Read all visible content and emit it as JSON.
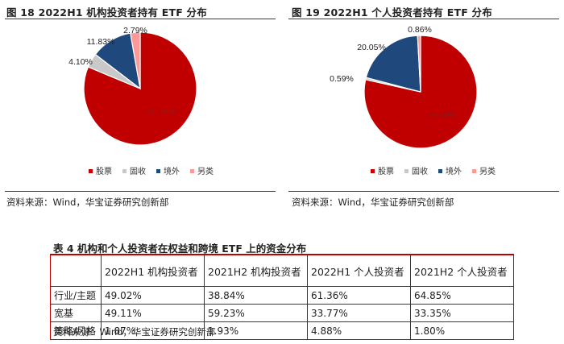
{
  "charts": [
    {
      "title": "图 18  2022H1 机构投资者持有 ETF 分布",
      "source": "资料来源：Wind，华宝证券研究创新部",
      "chart_data": {
        "type": "pie",
        "title": "图 18  2022H1 机构投资者持有 ETF 分布",
        "categories": [
          "股票",
          "固收",
          "境外",
          "另类"
        ],
        "values": [
          81.28,
          4.1,
          11.83,
          2.79
        ],
        "labels": [
          "81.28%",
          "4.10%",
          "11.83%",
          "2.79%"
        ],
        "colors": [
          "#c00000",
          "#c9c9c9",
          "#1f497d",
          "#ff9999"
        ],
        "legend": "bottom"
      }
    },
    {
      "title": "图 19  2022H1 个人投资者持有 ETF 分布",
      "source": "资料来源：Wind，华宝证券研究创新部",
      "chart_data": {
        "type": "pie",
        "title": "图 19  2022H1 个人投资者持有 ETF 分布",
        "categories": [
          "股票",
          "固收",
          "境外",
          "另类"
        ],
        "values": [
          78.5,
          0.59,
          20.05,
          0.86
        ],
        "labels": [
          "78.50%",
          "0.59%",
          "20.05%",
          "0.86%"
        ],
        "colors": [
          "#c00000",
          "#c9c9c9",
          "#1f497d",
          "#ff9999"
        ],
        "legend": "bottom"
      }
    }
  ],
  "table": {
    "title": "表 4  机构和个人投资者在权益和跨境 ETF 上的资金分布",
    "headers": [
      "",
      "2022H1 机构投资者",
      "2021H2 机构投资者",
      "2022H1 个人投资者",
      "2021H2 个人投资者"
    ],
    "rows": [
      [
        "行业/主题",
        "49.02%",
        "38.84%",
        "61.36%",
        "64.85%"
      ],
      [
        "宽基",
        "49.11%",
        "59.23%",
        "33.77%",
        "33.35%"
      ],
      [
        "策略/风格",
        "1.87%",
        "1.93%",
        "4.88%",
        "1.80%"
      ]
    ],
    "source": "资料来源：Wind，华宝证券研究创新部"
  }
}
